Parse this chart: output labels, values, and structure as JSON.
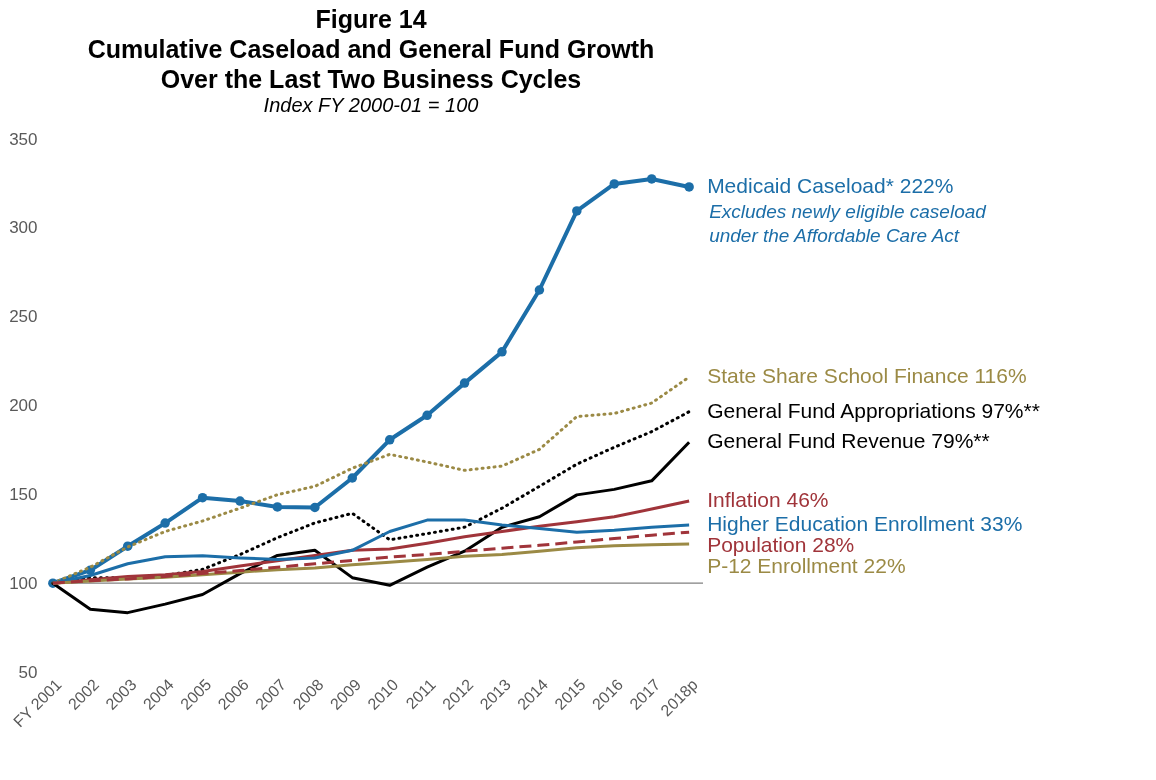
{
  "chart_data": {
    "type": "line",
    "title": "Figure 14\nCumulative Caseload and General Fund Growth\nOver the Last Two Business Cycles",
    "subtitle": "Index FY 2000-01 = 100",
    "categories": [
      "FY 2001",
      "2002",
      "2003",
      "2004",
      "2005",
      "2006",
      "2007",
      "2008",
      "2009",
      "2010",
      "2011",
      "2012",
      "2013",
      "2014",
      "2015",
      "2016",
      "2017",
      "2018p"
    ],
    "ylim": [
      50,
      350
    ],
    "yticks": [
      50,
      100,
      150,
      200,
      250,
      300,
      350
    ],
    "grid": false,
    "legend": false,
    "ref_lines": [
      {
        "axis": "y",
        "value": 100,
        "color": "#808080"
      }
    ],
    "annotations": [
      "Excludes newly eligible caseload under the Affordable Care Act"
    ],
    "series": [
      {
        "name": "Medicaid Caseload* 222%",
        "color": "#1c6ea8",
        "marker": "circle",
        "line_style": "solid",
        "values": [
          100,
          107.3,
          120.8,
          133.8,
          148.1,
          146.2,
          142.9,
          142.6,
          159.2,
          180.7,
          194.5,
          212.6,
          230.2,
          265.0,
          309.5,
          324.7,
          327.5,
          323
        ]
      },
      {
        "name": "State Share School Finance 116%",
        "color": "#9b8a45",
        "marker": "none",
        "line_style": "dotted",
        "values": [
          100,
          109,
          120.4,
          129.1,
          135,
          142.2,
          149.8,
          154.5,
          164.7,
          172.5,
          168.2,
          163.5,
          165.9,
          175.3,
          193.8,
          195.5,
          201.4,
          216
        ]
      },
      {
        "name": "General Fund Appropriations 97%**",
        "color": "#000000",
        "marker": "none",
        "line_style": "dotted",
        "values": [
          100,
          103.1,
          103.1,
          104.3,
          107.8,
          116.1,
          125.6,
          133.9,
          139.3,
          124.4,
          127.9,
          131.5,
          142.2,
          154.5,
          167.0,
          176.5,
          185.3,
          196.5
        ]
      },
      {
        "name": "General Fund Revenue 79%**",
        "color": "#000000",
        "marker": "none",
        "line_style": "solid",
        "values": [
          100,
          85.3,
          83.4,
          88.2,
          93.6,
          105.4,
          115.6,
          118.5,
          103.1,
          98.8,
          109.0,
          118.0,
          131.5,
          137.4,
          149.7,
          152.8,
          157.6,
          179.3
        ]
      },
      {
        "name": "Inflation 46%",
        "color": "#a0343a",
        "marker": "none",
        "line_style": "solid",
        "values": [
          100,
          101.9,
          103.8,
          104.7,
          106.6,
          109.7,
          112.6,
          115.6,
          118.5,
          119.2,
          122.5,
          126.1,
          129.1,
          132.0,
          134.6,
          137.4,
          141.7,
          146.2
        ]
      },
      {
        "name": "Higher Education Enrollment 33%",
        "color": "#1c6ea8",
        "marker": "none",
        "line_style": "solid",
        "values": [
          100,
          104.3,
          110.9,
          114.9,
          115.4,
          114.2,
          113.3,
          114.2,
          118.5,
          129.1,
          135.5,
          135.5,
          132.7,
          130.8,
          128.7,
          129.8,
          131.5,
          132.7
        ]
      },
      {
        "name": "P-12 Enrollment 22%",
        "color": "#9b8a45",
        "marker": "none",
        "line_style": "solid",
        "values": [
          100,
          101.2,
          102.4,
          103.3,
          104.7,
          106.2,
          107.6,
          108.5,
          110.4,
          111.8,
          113.3,
          115.2,
          116.1,
          118.0,
          119.9,
          121.1,
          121.6,
          122.0
        ]
      },
      {
        "name": "Population  28%",
        "color": "#a0343a",
        "marker": "none",
        "line_style": "dashed",
        "values": [
          100,
          101.4,
          102.4,
          103.8,
          105.4,
          107.1,
          109.0,
          110.9,
          112.8,
          114.7,
          116.1,
          118.0,
          119.7,
          121.3,
          123.2,
          125.1,
          127.0,
          128.7
        ]
      }
    ]
  }
}
